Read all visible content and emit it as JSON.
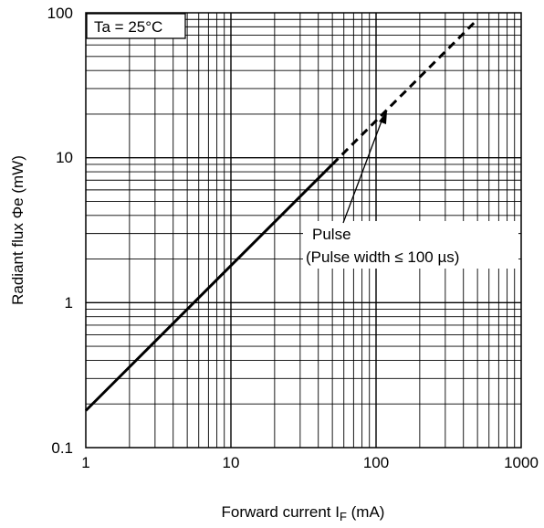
{
  "chart_data": {
    "type": "line",
    "xscale": "log",
    "yscale": "log",
    "xlim": [
      1,
      1000
    ],
    "ylim": [
      0.1,
      100
    ],
    "grid": true,
    "xlabel_main": "Forward current I",
    "xlabel_sub": "F",
    "xlabel_unit": " (mA)",
    "ylabel": "Radiant flux Φe (mW)",
    "x_ticks": [
      "1",
      "10",
      "100",
      "1000"
    ],
    "y_ticks": [
      "0.1",
      "1",
      "10",
      "100"
    ],
    "annotation_box": "Ta = 25°C",
    "pulse_label_line1": "Pulse",
    "pulse_label_line2": "(Pulse width ≤ 100 µs)",
    "series": [
      {
        "style": "solid",
        "x": [
          1,
          50
        ],
        "y": [
          0.18,
          9.0
        ]
      },
      {
        "style": "dashed",
        "x": [
          50,
          500
        ],
        "y": [
          9.0,
          90
        ]
      }
    ]
  },
  "colors": {
    "line": "#000000",
    "grid": "#000000",
    "background": "#ffffff"
  }
}
